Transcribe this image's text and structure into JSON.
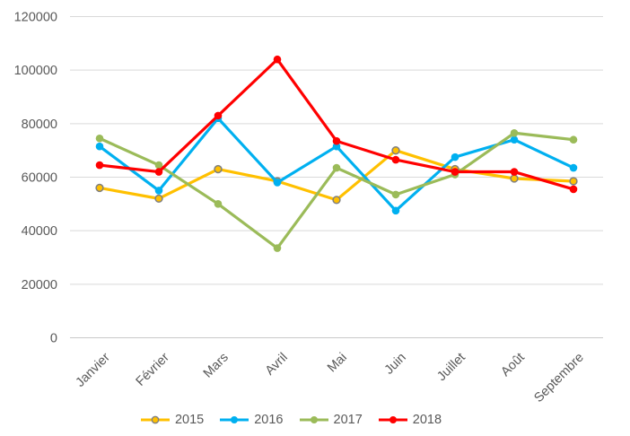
{
  "chart_data": {
    "type": "line",
    "title": "",
    "xlabel": "",
    "ylabel": "",
    "categories": [
      "Janvier",
      "Février",
      "Mars",
      "Avril",
      "Mai",
      "Juin",
      "Juillet",
      "Août",
      "Septembre"
    ],
    "series": [
      {
        "name": "2015",
        "color": "#FFC000",
        "marker": "circle-ring",
        "marker_border": "#7F7F7F",
        "values": [
          56000,
          52000,
          63000,
          58500,
          51500,
          70000,
          63000,
          59500,
          58500
        ]
      },
      {
        "name": "2016",
        "color": "#00B0F0",
        "marker": "circle",
        "marker_border": "",
        "values": [
          71500,
          55000,
          82000,
          58000,
          71500,
          47500,
          67500,
          74000,
          63500
        ]
      },
      {
        "name": "2017",
        "color": "#9BBB59",
        "marker": "circle",
        "marker_border": "",
        "values": [
          74500,
          64500,
          50000,
          33500,
          63500,
          53500,
          61000,
          76500,
          74000
        ]
      },
      {
        "name": "2018",
        "color": "#FF0000",
        "marker": "circle",
        "marker_border": "",
        "values": [
          64500,
          62000,
          83000,
          104000,
          73500,
          66500,
          62000,
          62000,
          55500
        ]
      }
    ],
    "ylim": [
      0,
      120000
    ],
    "yticks": [
      0,
      20000,
      40000,
      60000,
      80000,
      100000,
      120000
    ],
    "grid": "horizontal",
    "legend_position": "bottom",
    "axis_text_color": "#595959",
    "gridline_color": "#D9D9D9",
    "axis_line_color": "#C9C9C9",
    "background_color": "#FFFFFF"
  }
}
